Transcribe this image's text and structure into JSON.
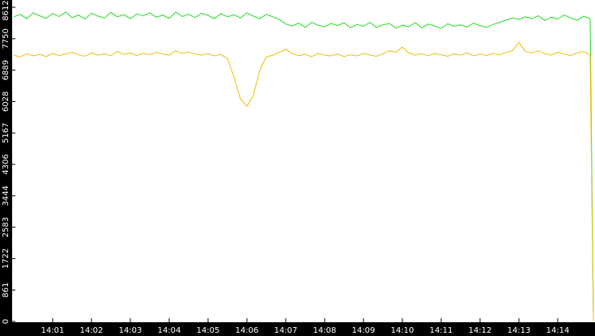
{
  "chart_data": {
    "type": "line",
    "x": [
      "14:00:00",
      "14:00:10",
      "14:00:20",
      "14:00:30",
      "14:00:40",
      "14:00:50",
      "14:01:00",
      "14:01:10",
      "14:01:20",
      "14:01:30",
      "14:01:40",
      "14:01:50",
      "14:02:00",
      "14:02:10",
      "14:02:20",
      "14:02:30",
      "14:02:40",
      "14:02:50",
      "14:03:00",
      "14:03:10",
      "14:03:20",
      "14:03:30",
      "14:03:40",
      "14:03:50",
      "14:04:00",
      "14:04:10",
      "14:04:20",
      "14:04:30",
      "14:04:40",
      "14:04:50",
      "14:05:00",
      "14:05:10",
      "14:05:20",
      "14:05:30",
      "14:05:40",
      "14:05:50",
      "14:06:00",
      "14:06:10",
      "14:06:20",
      "14:06:30",
      "14:06:40",
      "14:06:50",
      "14:07:00",
      "14:07:10",
      "14:07:20",
      "14:07:30",
      "14:07:40",
      "14:07:50",
      "14:08:00",
      "14:08:10",
      "14:08:20",
      "14:08:30",
      "14:08:40",
      "14:08:50",
      "14:09:00",
      "14:09:10",
      "14:09:20",
      "14:09:30",
      "14:09:40",
      "14:09:50",
      "14:10:00",
      "14:10:10",
      "14:10:20",
      "14:10:30",
      "14:10:40",
      "14:10:50",
      "14:11:00",
      "14:11:10",
      "14:11:20",
      "14:11:30",
      "14:11:40",
      "14:11:50",
      "14:12:00",
      "14:12:10",
      "14:12:20",
      "14:12:30",
      "14:12:40",
      "14:12:50",
      "14:13:00",
      "14:13:10",
      "14:13:20",
      "14:13:30",
      "14:13:40",
      "14:13:50",
      "14:14:00",
      "14:14:10",
      "14:14:20",
      "14:14:30",
      "14:14:40",
      "14:14:50",
      "14:14:55"
    ],
    "series": [
      {
        "color": "#22dd22",
        "values": [
          8350,
          8420,
          8300,
          8460,
          8380,
          8310,
          8440,
          8360,
          8480,
          8330,
          8400,
          8290,
          8450,
          8370,
          8320,
          8470,
          8350,
          8410,
          8300,
          8430,
          8380,
          8460,
          8340,
          8400,
          8310,
          8480,
          8360,
          8420,
          8330,
          8450,
          8390,
          8300,
          8440,
          8350,
          8410,
          8320,
          8460,
          8370,
          8300,
          8420,
          8350,
          8280,
          8150,
          8100,
          8180,
          8060,
          8200,
          8120,
          8080,
          8170,
          8110,
          8190,
          8050,
          8140,
          8090,
          8200,
          8060,
          8130,
          8170,
          8040,
          8120,
          8080,
          8190,
          8050,
          8150,
          8100,
          8030,
          8160,
          8090,
          8130,
          8070,
          8180,
          8110,
          8060,
          8140,
          8200,
          8260,
          8320,
          8280,
          8350,
          8300,
          8380,
          8250,
          8340,
          8290,
          8400,
          8320,
          8260,
          8370,
          8300,
          230
        ]
      },
      {
        "color": "#f0c000",
        "values": [
          7300,
          7250,
          7340,
          7280,
          7320,
          7260,
          7350,
          7290,
          7330,
          7380,
          7310,
          7270,
          7360,
          7300,
          7340,
          7280,
          7400,
          7320,
          7360,
          7290,
          7350,
          7310,
          7380,
          7330,
          7300,
          7420,
          7350,
          7390,
          7330,
          7300,
          7340,
          7280,
          7320,
          7200,
          6700,
          6100,
          5900,
          6200,
          6900,
          7250,
          7300,
          7380,
          7460,
          7340,
          7290,
          7320,
          7260,
          7350,
          7300,
          7280,
          7330,
          7260,
          7310,
          7280,
          7350,
          7300,
          7270,
          7340,
          7420,
          7380,
          7520,
          7360,
          7300,
          7340,
          7280,
          7350,
          7310,
          7270,
          7340,
          7300,
          7360,
          7280,
          7330,
          7290,
          7350,
          7310,
          7380,
          7420,
          7650,
          7400,
          7360,
          7420,
          7340,
          7300,
          7380,
          7330,
          7290,
          7360,
          7400,
          7300,
          0
        ]
      }
    ],
    "xlim": [
      "14:00:00",
      "14:14:55"
    ],
    "xticks": [
      "14:01",
      "14:02",
      "14:03",
      "14:04",
      "14:05",
      "14:06",
      "14:07",
      "14:08",
      "14:09",
      "14:10",
      "14:11",
      "14:12",
      "14:13",
      "14:14"
    ],
    "ylim": [
      0,
      8612
    ],
    "yticks": [
      0,
      861,
      1722,
      2583,
      3444,
      4306,
      5167,
      6028,
      6889,
      7750,
      8612
    ]
  }
}
